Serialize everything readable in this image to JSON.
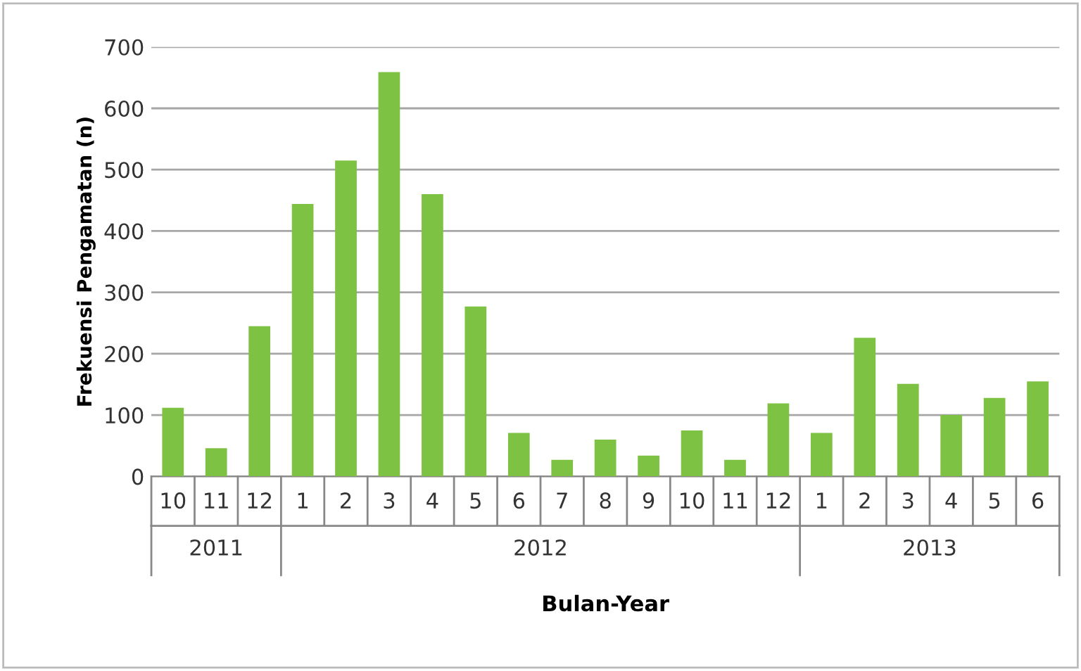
{
  "chart_data": {
    "type": "bar",
    "xlabel": "Bulan-Year",
    "ylabel": "Frekuensi Pengamatan (n)",
    "categories": [
      "10",
      "11",
      "12",
      "1",
      "2",
      "3",
      "4",
      "5",
      "6",
      "7",
      "8",
      "9",
      "10",
      "11",
      "12",
      "1",
      "2",
      "3",
      "4",
      "5",
      "6"
    ],
    "values": [
      112,
      46,
      245,
      444,
      515,
      659,
      460,
      277,
      71,
      27,
      60,
      34,
      75,
      27,
      119,
      71,
      226,
      151,
      100,
      128,
      155
    ],
    "color": "#7dc242",
    "ylim": [
      0,
      700
    ],
    "yticks": [
      0,
      100,
      200,
      300,
      400,
      500,
      600,
      700
    ],
    "grid": "y",
    "annotations": [
      "2011",
      "2012",
      "2013"
    ]
  }
}
